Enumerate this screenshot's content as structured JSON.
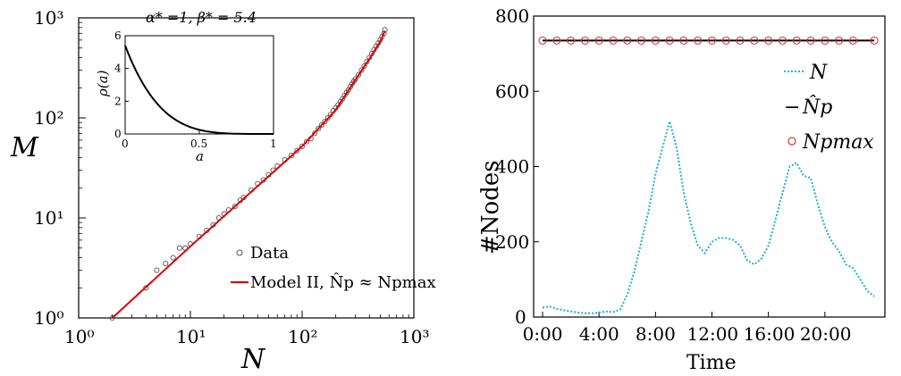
{
  "chart_data": [
    {
      "type": "scatter",
      "xscale": "log",
      "yscale": "log",
      "xlim": [
        1,
        1000
      ],
      "ylim": [
        1,
        1000
      ],
      "xlabel": "N",
      "ylabel": "M",
      "xticks": [
        "10⁰",
        "10¹",
        "10²",
        "10³"
      ],
      "yticks": [
        "10⁰",
        "10¹",
        "10²",
        "10³"
      ],
      "legend": {
        "position": "lower-right",
        "data_label": "Data",
        "model_label": "Model II, N̂p ≈ Npmax"
      },
      "series": [
        {
          "name": "Data",
          "style": "hollow-circle",
          "color": "#555555",
          "points": [
            [
              2,
              1
            ],
            [
              4,
              2
            ],
            [
              5,
              3
            ],
            [
              6,
              3.5
            ],
            [
              7,
              4
            ],
            [
              8,
              5
            ],
            [
              9,
              5
            ],
            [
              10,
              5.5
            ],
            [
              12,
              6.5
            ],
            [
              14,
              7.5
            ],
            [
              16,
              8.5
            ],
            [
              18,
              10
            ],
            [
              20,
              11
            ],
            [
              22,
              12
            ],
            [
              25,
              13
            ],
            [
              28,
              15
            ],
            [
              30,
              16
            ],
            [
              35,
              19
            ],
            [
              40,
              22
            ],
            [
              45,
              24
            ],
            [
              50,
              27
            ],
            [
              55,
              30
            ],
            [
              60,
              33
            ],
            [
              70,
              38
            ],
            [
              80,
              42
            ],
            [
              90,
              47
            ],
            [
              100,
              52
            ],
            [
              110,
              58
            ],
            [
              120,
              62
            ],
            [
              130,
              70
            ],
            [
              140,
              78
            ],
            [
              150,
              85
            ],
            [
              160,
              92
            ],
            [
              170,
              100
            ],
            [
              180,
              108
            ],
            [
              190,
              118
            ],
            [
              200,
              126
            ],
            [
              210,
              135
            ],
            [
              220,
              145
            ],
            [
              230,
              155
            ],
            [
              240,
              168
            ],
            [
              250,
              180
            ],
            [
              260,
              190
            ],
            [
              270,
              205
            ],
            [
              280,
              220
            ],
            [
              290,
              232
            ],
            [
              300,
              245
            ],
            [
              320,
              270
            ],
            [
              340,
              300
            ],
            [
              360,
              330
            ],
            [
              380,
              365
            ],
            [
              400,
              400
            ],
            [
              420,
              440
            ],
            [
              440,
              480
            ],
            [
              460,
              520
            ],
            [
              480,
              560
            ],
            [
              500,
              600
            ],
            [
              520,
              650
            ],
            [
              540,
              700
            ],
            [
              550,
              760
            ]
          ]
        },
        {
          "name": "Model II, N̂p ≈ Npmax",
          "style": "line",
          "color": "#dd0000",
          "points": [
            [
              2,
              1
            ],
            [
              10,
              5.2
            ],
            [
              50,
              26
            ],
            [
              100,
              52
            ],
            [
              200,
              120
            ],
            [
              300,
              240
            ],
            [
              400,
              390
            ],
            [
              500,
              580
            ],
            [
              550,
              740
            ]
          ]
        }
      ],
      "inset": {
        "title": "α* =1, β* = 5.4",
        "xlabel": "a",
        "ylabel": "ρ(a)",
        "xlim": [
          0,
          1
        ],
        "ylim": [
          0,
          6
        ],
        "xticks": [
          "0",
          "0.5",
          "1"
        ],
        "yticks": [
          "0",
          "2",
          "4",
          "6"
        ],
        "alpha": 1,
        "beta": 5.4
      }
    },
    {
      "type": "line",
      "xlabel": "Time",
      "ylabel": "#Nodes",
      "ylim": [
        0,
        800
      ],
      "yticks": [
        "0",
        "200",
        "400",
        "600",
        "800"
      ],
      "xticks": [
        "0:00",
        "4:00",
        "8:00",
        "12:00",
        "16:00",
        "20:00"
      ],
      "xlim_hours": [
        0,
        24
      ],
      "legend": {
        "position": "top-right",
        "entries": [
          "N",
          "N̂p",
          "Npmax"
        ]
      },
      "series": [
        {
          "name": "N",
          "style": "dotted",
          "color": "#1ab0d8",
          "x": [
            0,
            0.5,
            1,
            1.5,
            2,
            2.5,
            3,
            3.5,
            4,
            4.5,
            5,
            5.5,
            6,
            6.5,
            7,
            7.5,
            8,
            8.5,
            9,
            9.5,
            10,
            10.5,
            11,
            11.5,
            12,
            12.5,
            13,
            13.5,
            14,
            14.5,
            15,
            15.5,
            16,
            16.5,
            17,
            17.5,
            18,
            18.5,
            19,
            19.5,
            20,
            20.5,
            21,
            21.5,
            22,
            22.5,
            23,
            23.5
          ],
          "y": [
            25,
            28,
            22,
            18,
            15,
            12,
            10,
            10,
            12,
            15,
            13,
            20,
            60,
            120,
            200,
            280,
            380,
            450,
            520,
            450,
            330,
            250,
            190,
            170,
            200,
            210,
            210,
            205,
            190,
            150,
            140,
            155,
            190,
            260,
            330,
            400,
            410,
            375,
            370,
            300,
            240,
            200,
            175,
            140,
            130,
            100,
            70,
            55
          ]
        },
        {
          "name": "N̂p",
          "style": "solid",
          "color": "#000000",
          "x": [
            0,
            23.5
          ],
          "y": [
            735,
            735
          ]
        },
        {
          "name": "Npmax",
          "style": "hollow-circle",
          "color": "#dd3333",
          "x": [
            0,
            1,
            2,
            3,
            4,
            5,
            6,
            7,
            8,
            9,
            10,
            11,
            12,
            13,
            14,
            15,
            16,
            17,
            18,
            19,
            20,
            21,
            22,
            23.5
          ],
          "y": [
            735,
            735,
            735,
            735,
            735,
            735,
            735,
            735,
            735,
            735,
            735,
            735,
            735,
            735,
            735,
            735,
            735,
            735,
            735,
            735,
            735,
            735,
            735,
            735
          ]
        }
      ]
    }
  ]
}
